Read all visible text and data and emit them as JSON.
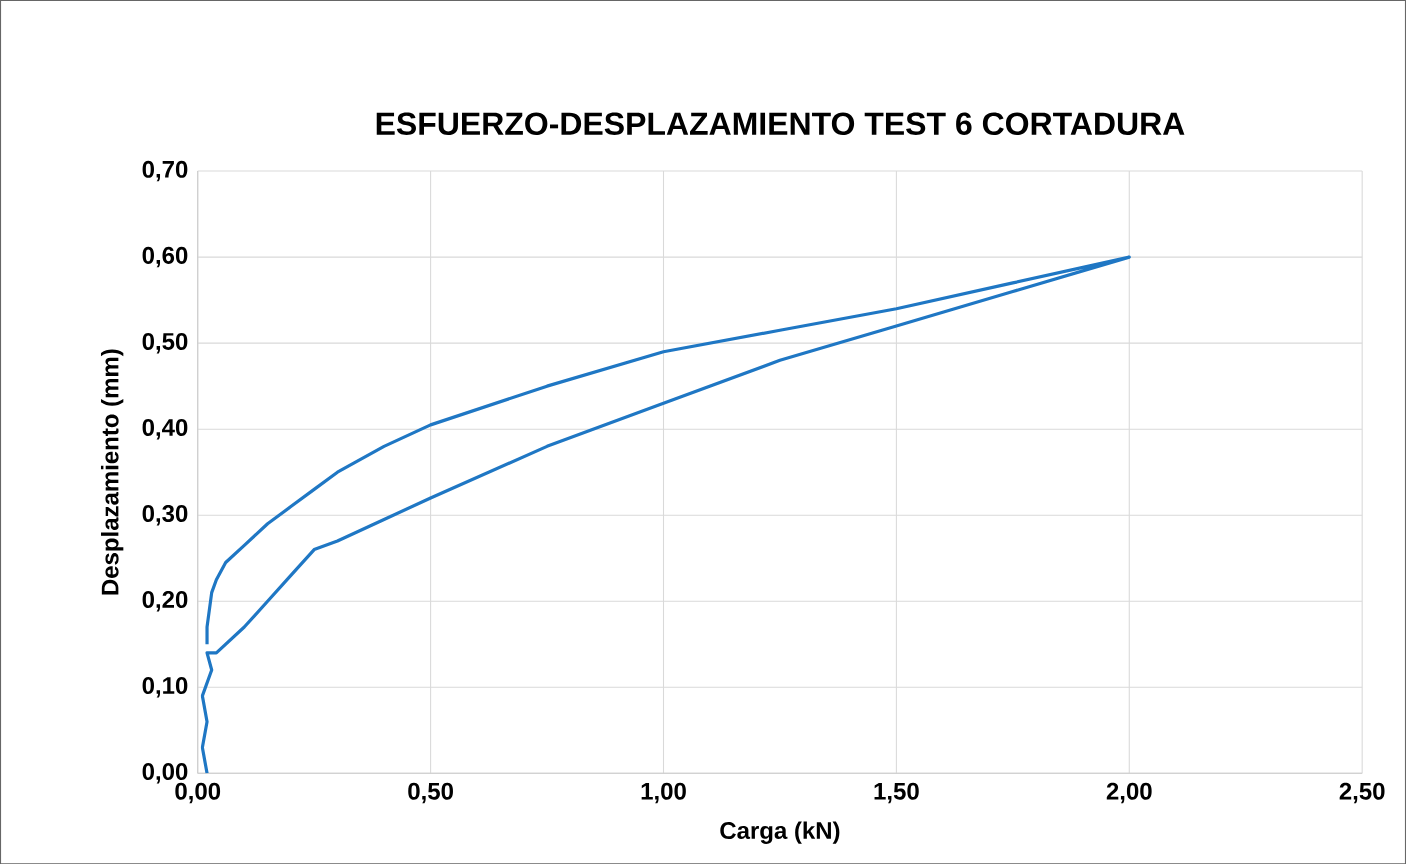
{
  "chart_data": {
    "type": "line",
    "title": "ESFUERZO-DESPLAZAMIENTO TEST 6 CORTADURA",
    "xlabel": "Carga (kN)",
    "ylabel": "Desplazamiento (mm)",
    "x": [
      0.02,
      0.01,
      0.02,
      0.01,
      0.03,
      0.02,
      0.04,
      0.07,
      0.1,
      0.15,
      0.2,
      0.25,
      0.3,
      0.4,
      0.5,
      0.75,
      1.0,
      1.25,
      1.5,
      1.75,
      2.0,
      1.75,
      1.5,
      1.25,
      1.0,
      0.75,
      0.5,
      0.4,
      0.3,
      0.25,
      0.2,
      0.15,
      0.1,
      0.06,
      0.04,
      0.03,
      0.02,
      0.02
    ],
    "series": [
      {
        "color": "#1f77c4",
        "values": [
          0.0,
          0.03,
          0.06,
          0.09,
          0.12,
          0.14,
          0.14,
          0.155,
          0.17,
          0.2,
          0.23,
          0.26,
          0.27,
          0.295,
          0.32,
          0.38,
          0.43,
          0.48,
          0.52,
          0.56,
          0.6,
          0.57,
          0.54,
          0.515,
          0.49,
          0.45,
          0.405,
          0.38,
          0.35,
          0.33,
          0.31,
          0.29,
          0.265,
          0.245,
          0.225,
          0.21,
          0.17,
          0.15
        ]
      }
    ],
    "xlim": [
      0,
      2.5
    ],
    "ylim": [
      0,
      0.7
    ],
    "xticks": [
      {
        "value": 0,
        "label": "0,00"
      },
      {
        "value": 0.5,
        "label": "0,50"
      },
      {
        "value": 1.0,
        "label": "1,00"
      },
      {
        "value": 1.5,
        "label": "1,50"
      },
      {
        "value": 2.0,
        "label": "2,00"
      },
      {
        "value": 2.5,
        "label": "2,50"
      }
    ],
    "yticks": [
      {
        "value": 0,
        "label": "0,00"
      },
      {
        "value": 0.1,
        "label": "0,10"
      },
      {
        "value": 0.2,
        "label": "0,20"
      },
      {
        "value": 0.3,
        "label": "0,30"
      },
      {
        "value": 0.4,
        "label": "0,40"
      },
      {
        "value": 0.5,
        "label": "0,50"
      },
      {
        "value": 0.6,
        "label": "0,60"
      },
      {
        "value": 0.7,
        "label": "0,70"
      }
    ],
    "grid": true,
    "marker": "none",
    "line_style": "solid"
  }
}
